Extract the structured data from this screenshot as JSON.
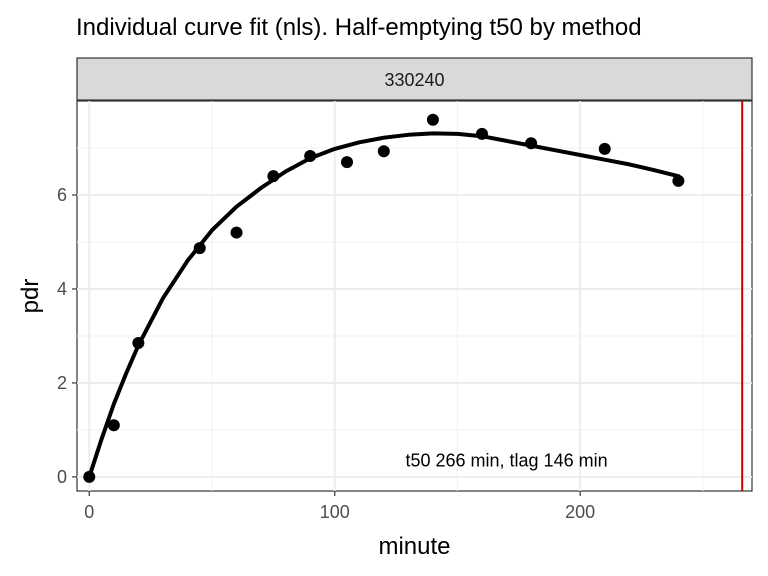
{
  "chart_data": {
    "type": "scatter",
    "title": "Individual curve fit (nls). Half-emptying t50 by method",
    "panel_label": "330240",
    "xlabel": "minute",
    "ylabel": "pdr",
    "xlim": [
      -5,
      270
    ],
    "ylim": [
      -0.3,
      8.0
    ],
    "x_ticks": [
      0,
      100,
      200
    ],
    "y_ticks": [
      0,
      2,
      4,
      6
    ],
    "x_minor_ticks": [
      50,
      150,
      250
    ],
    "y_minor_ticks": [
      1,
      3,
      5,
      7
    ],
    "grid": true,
    "points": {
      "x": [
        0,
        10,
        20,
        45,
        60,
        75,
        90,
        105,
        120,
        140,
        160,
        180,
        210,
        240
      ],
      "y": [
        0.0,
        1.1,
        2.85,
        4.87,
        5.2,
        6.4,
        6.83,
        6.7,
        6.93,
        7.6,
        7.3,
        7.1,
        6.98,
        6.3
      ]
    },
    "fit_curve": {
      "x": [
        0,
        5,
        10,
        15,
        20,
        30,
        40,
        50,
        60,
        70,
        80,
        90,
        100,
        110,
        120,
        130,
        140,
        150,
        160,
        170,
        180,
        190,
        200,
        210,
        220,
        230,
        240
      ],
      "y": [
        0.0,
        0.8,
        1.55,
        2.2,
        2.8,
        3.8,
        4.6,
        5.25,
        5.75,
        6.15,
        6.5,
        6.78,
        6.98,
        7.12,
        7.22,
        7.28,
        7.31,
        7.3,
        7.25,
        7.15,
        7.05,
        6.95,
        6.85,
        6.75,
        6.65,
        6.53,
        6.4
      ]
    },
    "vline_x": 266,
    "vline_color": "#cc0000",
    "annotation": "t50 266 min,  tlag 146 min",
    "annotation_x": 170,
    "annotation_y": 0.35
  }
}
